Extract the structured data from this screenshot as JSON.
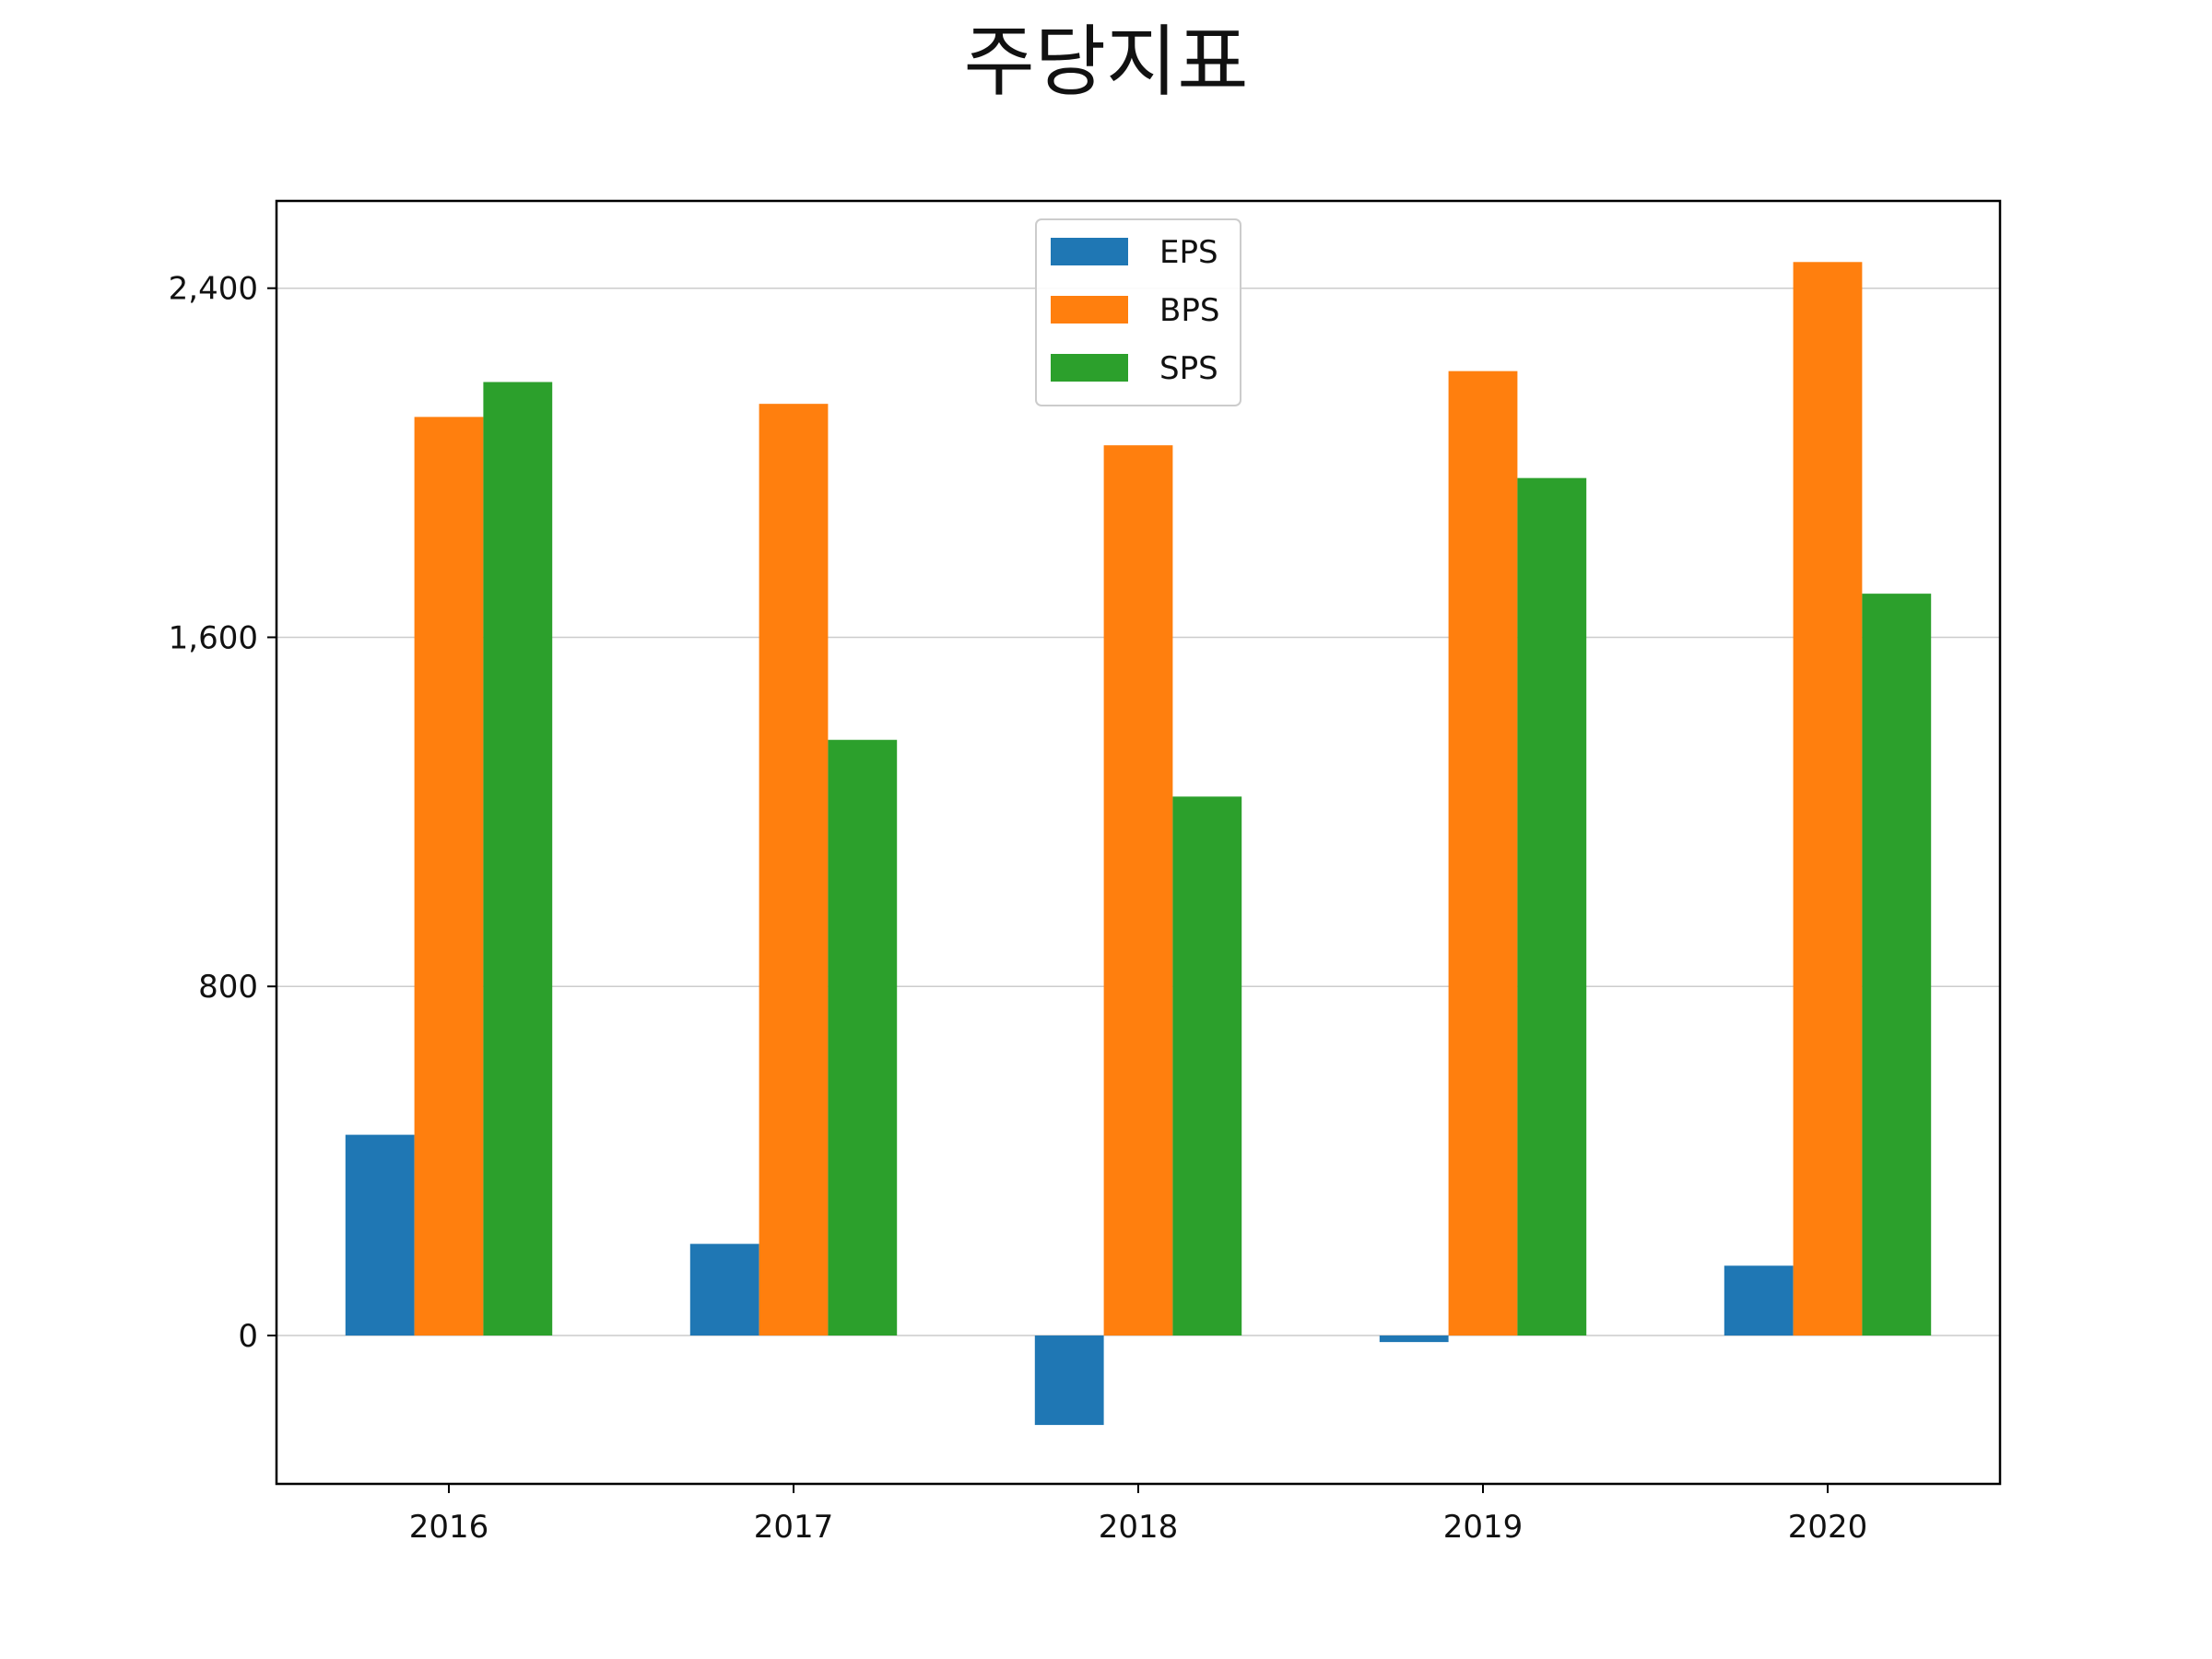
{
  "chart_data": {
    "type": "bar",
    "title": "주당지표",
    "xlabel": "",
    "ylabel": "",
    "categories": [
      "2016",
      "2017",
      "2018",
      "2019",
      "2020"
    ],
    "series": [
      {
        "name": "EPS",
        "color": "#1f77b4",
        "values": [
          460,
          210,
          -205,
          -15,
          160
        ]
      },
      {
        "name": "BPS",
        "color": "#ff7f0e",
        "values": [
          2105,
          2135,
          2040,
          2210,
          2460
        ]
      },
      {
        "name": "SPS",
        "color": "#2ca02c",
        "values": [
          2185,
          1365,
          1235,
          1965,
          1700
        ]
      }
    ],
    "ylim": [
      -340,
      2600
    ],
    "yticks": [
      0,
      800,
      1600,
      2400
    ],
    "ytick_labels": [
      "0",
      "800",
      "1,600",
      "2,400"
    ],
    "grid": "horizontal",
    "legend_position": "top-center"
  }
}
